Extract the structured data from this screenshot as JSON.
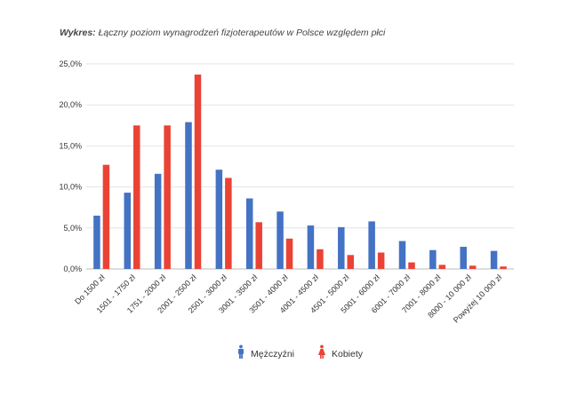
{
  "chart_data": {
    "type": "bar",
    "title_prefix": "Wykres:",
    "title": "Łączny poziom wynagrodzeń fizjoterapeutów w Polsce względem płci",
    "categories": [
      "Do 1500 zł",
      "1501 - 1750 zł",
      "1751 - 2000 zł",
      "2001 - 2500 zł",
      "2501 - 3000 zł",
      "3001 - 3500 zł",
      "3501 - 4000 zł",
      "4001 - 4500 zł",
      "4501 - 5000 zł",
      "5001 - 6000 zł",
      "6001 - 7000 zł",
      "7001 - 8000 zł",
      "8000 - 10 000 zł",
      "Powyżej 10 000 zł"
    ],
    "series": [
      {
        "name": "Mężczyźni",
        "color": "#4472C4",
        "values": [
          6.5,
          9.3,
          11.6,
          17.9,
          12.1,
          8.6,
          7.0,
          5.3,
          5.1,
          5.8,
          3.4,
          2.3,
          2.7,
          2.2
        ]
      },
      {
        "name": "Kobiety",
        "color": "#EA4335",
        "values": [
          12.7,
          17.5,
          17.5,
          23.7,
          11.1,
          5.7,
          3.7,
          2.4,
          1.7,
          2.0,
          0.8,
          0.5,
          0.4,
          0.3
        ]
      }
    ],
    "ylim": [
      0,
      25
    ],
    "yticks": [
      "0,0%",
      "5,0%",
      "10,0%",
      "15,0%",
      "20,0%",
      "25,0%"
    ],
    "ytick_values": [
      0,
      5,
      10,
      15,
      20,
      25
    ],
    "xlabel": "",
    "ylabel": "",
    "grid": true,
    "legend_position": "bottom"
  }
}
